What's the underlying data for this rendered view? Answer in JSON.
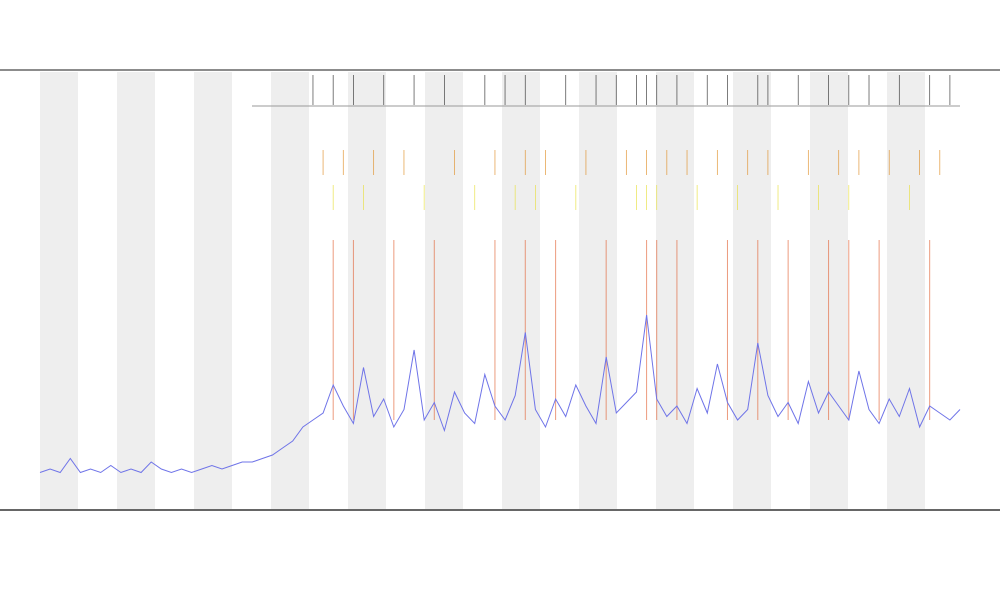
{
  "chart_data": {
    "type": "line",
    "color": "#6f74e8",
    "values": [
      5,
      6,
      5,
      9,
      5,
      6,
      5,
      7,
      5,
      6,
      5,
      8,
      6,
      5,
      6,
      5,
      6,
      7,
      6,
      7,
      8,
      8,
      9,
      10,
      12,
      14,
      18,
      20,
      22,
      30,
      24,
      19,
      35,
      21,
      26,
      18,
      23,
      40,
      20,
      25,
      17,
      28,
      22,
      19,
      33,
      24,
      20,
      27,
      45,
      23,
      18,
      26,
      21,
      30,
      24,
      19,
      38,
      22,
      25,
      28,
      50,
      26,
      21,
      24,
      19,
      29,
      22,
      36,
      25,
      20,
      23,
      42,
      27,
      21,
      25,
      19,
      31,
      22,
      28,
      24,
      20,
      34,
      23,
      19,
      26,
      21,
      29,
      18,
      24,
      22,
      20,
      23
    ],
    "ylim": [
      0,
      120
    ],
    "events": [
      {
        "color": "#333333",
        "x": [
          27,
          29,
          31,
          34,
          37,
          40,
          44,
          46,
          48,
          52,
          55,
          57,
          59,
          60,
          61,
          63,
          66,
          68,
          71,
          72,
          75,
          78,
          80,
          82,
          85,
          88,
          90
        ]
      },
      {
        "color": "#e0902a",
        "x": [
          28,
          30,
          33,
          36,
          41,
          45,
          48,
          50,
          54,
          58,
          60,
          62,
          64,
          67,
          70,
          72,
          76,
          79,
          81,
          84,
          87,
          89
        ]
      },
      {
        "color": "#e8e040",
        "x": [
          29,
          32,
          38,
          43,
          47,
          49,
          53,
          59,
          60,
          61,
          65,
          69,
          73,
          77,
          80,
          86
        ]
      },
      {
        "color": "#e05a2a",
        "x": [
          29,
          31,
          35,
          39,
          45,
          48,
          51,
          56,
          60,
          61,
          63,
          68,
          71,
          74,
          78,
          80,
          83,
          88
        ]
      }
    ]
  }
}
